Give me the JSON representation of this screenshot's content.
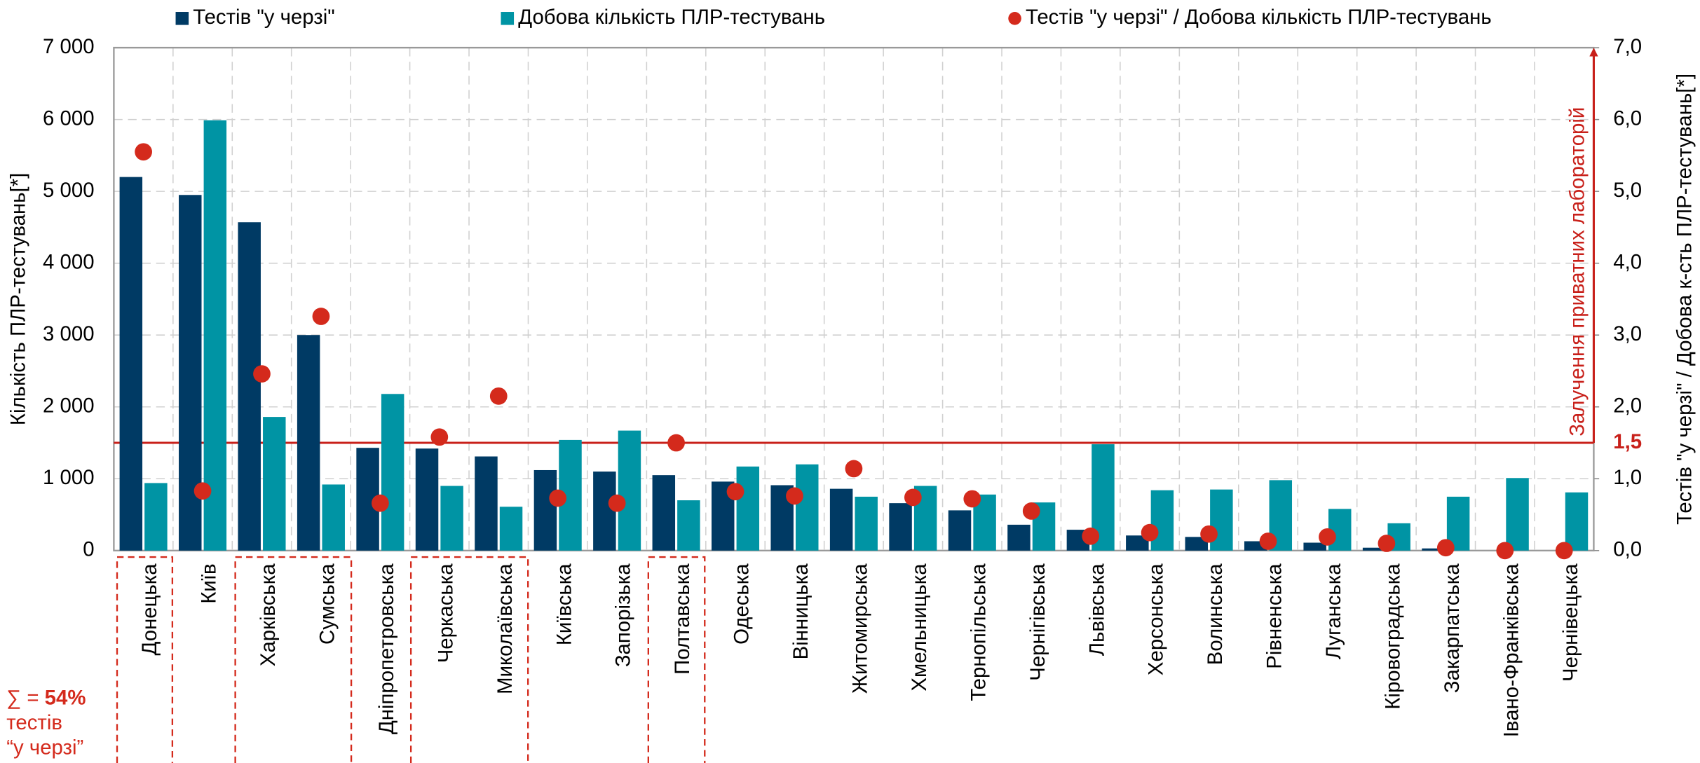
{
  "chart_data": {
    "type": "bar",
    "legend_position": "top",
    "ylabel": "Кількість ПЛР-тестувань[*]",
    "y2label": "Тестів \"у черзі\" / Добова к-сть ПЛР-тестувань[*]",
    "categories": [
      "Донецька",
      "Київ",
      "Харківська",
      "Сумська",
      "Дніпропетровська",
      "Черкаська",
      "Миколаївська",
      "Київська",
      "Запорізька",
      "Полтавська",
      "Одеська",
      "Вінницька",
      "Житомирська",
      "Хмельницька",
      "Тернопільська",
      "Чернігівська",
      "Львівська",
      "Херсонська",
      "Волинська",
      "Рівненська",
      "Луганська",
      "Кіровоградська",
      "Закарпатська",
      "Івано-Франківська",
      "Чернівецька"
    ],
    "series": [
      {
        "name": "Тестів \"у черзі\"",
        "type": "bar",
        "color": "#003a64",
        "values": [
          5200,
          4950,
          4570,
          3000,
          1430,
          1420,
          1310,
          1120,
          1100,
          1050,
          960,
          910,
          860,
          660,
          560,
          360,
          290,
          210,
          190,
          130,
          110,
          40,
          30,
          0,
          0
        ]
      },
      {
        "name": "Добова кількість ПЛР-тестувань",
        "type": "bar",
        "color": "#0094a4",
        "values": [
          940,
          5990,
          1860,
          920,
          2180,
          900,
          610,
          1540,
          1670,
          700,
          1170,
          1200,
          750,
          900,
          780,
          670,
          1480,
          840,
          850,
          980,
          580,
          380,
          750,
          1010,
          810
        ]
      },
      {
        "name": "Тестів \"у черзі\" / Добова кількість ПЛР-тестувань",
        "type": "scatter",
        "axis": "y2",
        "color": "#d42a1c",
        "values": [
          5.55,
          0.83,
          2.46,
          3.26,
          0.66,
          1.58,
          2.15,
          0.73,
          0.66,
          1.5,
          0.82,
          0.76,
          1.14,
          0.74,
          0.72,
          0.55,
          0.2,
          0.25,
          0.23,
          0.13,
          0.19,
          0.1,
          0.04,
          0,
          0
        ]
      }
    ],
    "ylim": [
      0,
      7000
    ],
    "yticks": [
      0,
      {
        "value": 1000,
        "label": "1 000"
      },
      {
        "value": 2000,
        "label": "2 000"
      },
      {
        "value": 3000,
        "label": "3 000"
      },
      {
        "value": 4000,
        "label": "4 000"
      },
      {
        "value": 5000,
        "label": "5 000"
      },
      {
        "value": 6000,
        "label": "6 000"
      },
      {
        "value": 7000,
        "label": "7 000"
      }
    ],
    "y2lim": [
      0,
      7
    ],
    "y2ticks": [
      {
        "value": 0,
        "label": "0,0"
      },
      {
        "value": 1,
        "label": "1,0"
      },
      {
        "value": 2,
        "label": "2,0"
      },
      {
        "value": 3,
        "label": "3,0"
      },
      {
        "value": 4,
        "label": "4,0"
      },
      {
        "value": 5,
        "label": "5,0"
      },
      {
        "value": 6,
        "label": "6,0"
      },
      {
        "value": 7,
        "label": "7,0"
      }
    ],
    "grid": true,
    "threshold": {
      "value": 1.5,
      "label": "1,5",
      "text": "Залучення приватних лабораторій",
      "color": "#c8201a"
    },
    "annotation": {
      "prefix": "∑ = ",
      "bold": "54%",
      "lines": [
        "тестів",
        "“у черзі”"
      ],
      "color": "#d42a1c"
    }
  }
}
